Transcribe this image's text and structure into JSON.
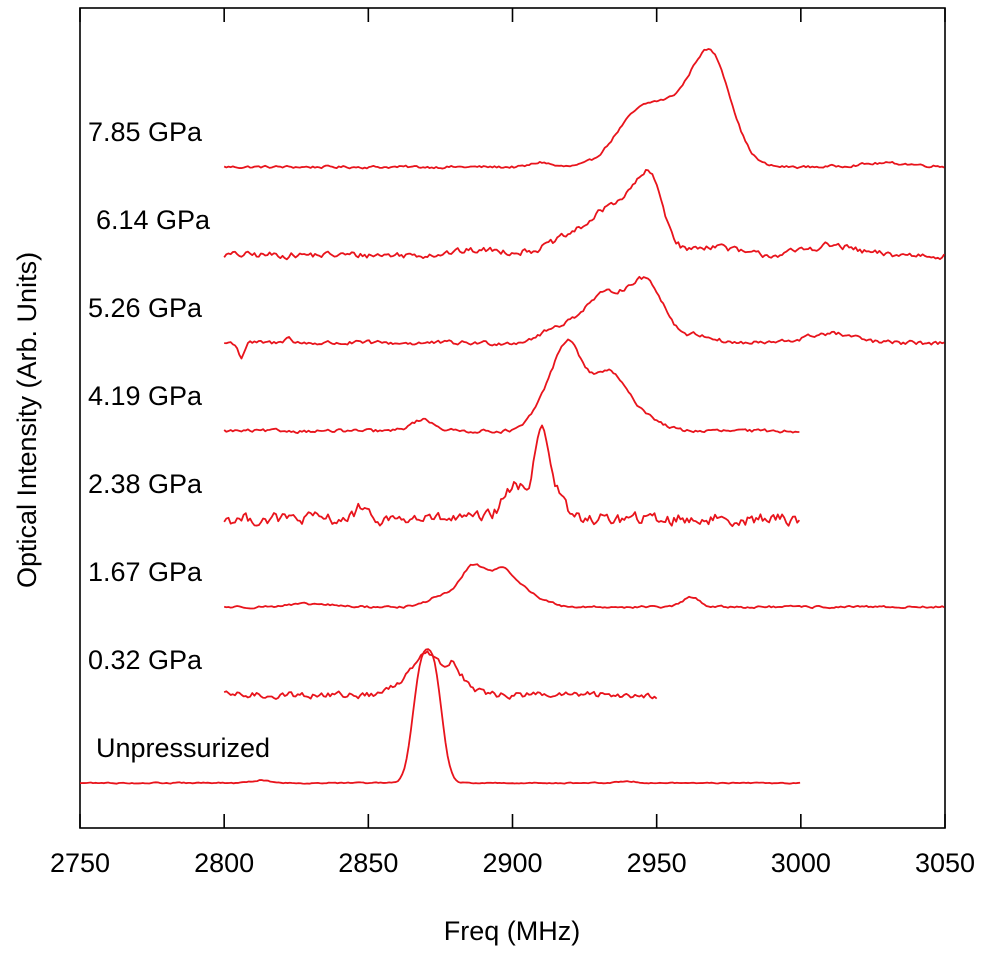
{
  "chart_data": {
    "type": "line",
    "title": "",
    "xlabel": "Freq (MHz)",
    "ylabel": "Optical Intensity (Arb. Units)",
    "xlim": [
      2750,
      3050
    ],
    "x_ticks": [
      2750,
      2800,
      2850,
      2900,
      2950,
      3000,
      3050
    ],
    "x_tick_labels": [
      "2750",
      "2800",
      "2850",
      "2900",
      "2950",
      "3000",
      "3050"
    ],
    "grid": false,
    "legend": "none; each trace labelled directly on the left",
    "line_color": "#e8141c",
    "series": [
      {
        "name": "7.85 GPa",
        "offset": 7,
        "x_range": [
          2800,
          3050
        ],
        "noise": 0.012,
        "peaks": [
          {
            "center": 2969,
            "height": 1.08,
            "width": 7
          },
          {
            "center": 2952,
            "height": 0.6,
            "width": 10
          },
          {
            "center": 2940,
            "height": 0.22,
            "width": 7
          },
          {
            "center": 2910,
            "height": 0.05,
            "width": 3
          },
          {
            "center": 3030,
            "height": 0.04,
            "width": 10
          }
        ]
      },
      {
        "name": "6.14 GPa",
        "offset": 6,
        "x_range": [
          2800,
          3050
        ],
        "noise": 0.03,
        "peaks": [
          {
            "center": 2948,
            "height": 0.55,
            "width": 4.5
          },
          {
            "center": 2938,
            "height": 0.55,
            "width": 9
          },
          {
            "center": 2920,
            "height": 0.15,
            "width": 8
          },
          {
            "center": 2970,
            "height": 0.1,
            "width": 6
          },
          {
            "center": 2890,
            "height": 0.05,
            "width": 10
          },
          {
            "center": 3010,
            "height": 0.1,
            "width": 8
          }
        ]
      },
      {
        "name": "5.26 GPa",
        "offset": 5,
        "x_range": [
          2800,
          3050
        ],
        "noise": 0.02,
        "peaks": [
          {
            "center": 2947,
            "height": 0.58,
            "width": 6
          },
          {
            "center": 2932,
            "height": 0.5,
            "width": 8
          },
          {
            "center": 2915,
            "height": 0.12,
            "width": 6
          },
          {
            "center": 2965,
            "height": 0.08,
            "width": 5
          },
          {
            "center": 3010,
            "height": 0.1,
            "width": 8
          },
          {
            "center": 2822,
            "height": 0.08,
            "width": 1
          },
          {
            "center": 2806,
            "height": -0.15,
            "width": 1
          }
        ]
      },
      {
        "name": "4.19 GPa",
        "offset": 4,
        "x_range": [
          2800,
          3000
        ],
        "noise": 0.015,
        "peaks": [
          {
            "center": 2919,
            "height": 0.9,
            "width": 5
          },
          {
            "center": 2933,
            "height": 0.6,
            "width": 6
          },
          {
            "center": 2910,
            "height": 0.2,
            "width": 4
          },
          {
            "center": 2945,
            "height": 0.15,
            "width": 6
          },
          {
            "center": 2869,
            "height": 0.12,
            "width": 4
          }
        ]
      },
      {
        "name": "2.38 GPa",
        "offset": 3,
        "x_range": [
          2800,
          3000
        ],
        "noise": 0.055,
        "peaks": [
          {
            "center": 2910,
            "height": 0.9,
            "width": 2.5
          },
          {
            "center": 2901,
            "height": 0.35,
            "width": 4
          },
          {
            "center": 2915,
            "height": 0.25,
            "width": 3
          },
          {
            "center": 2847,
            "height": 0.12,
            "width": 1.5
          }
        ]
      },
      {
        "name": "1.67 GPa",
        "offset": 2,
        "x_range": [
          2800,
          3050
        ],
        "noise": 0.01,
        "peaks": [
          {
            "center": 2886,
            "height": 0.38,
            "width": 4
          },
          {
            "center": 2896,
            "height": 0.35,
            "width": 5
          },
          {
            "center": 2876,
            "height": 0.12,
            "width": 5
          },
          {
            "center": 2905,
            "height": 0.12,
            "width": 6
          },
          {
            "center": 2962,
            "height": 0.1,
            "width": 3
          },
          {
            "center": 2830,
            "height": 0.03,
            "width": 8
          }
        ]
      },
      {
        "name": "0.32 GPa",
        "offset": 1,
        "x_range": [
          2800,
          2950
        ],
        "noise": 0.03,
        "peaks": [
          {
            "center": 2870,
            "height": 0.45,
            "width": 4
          },
          {
            "center": 2879,
            "height": 0.3,
            "width": 3
          },
          {
            "center": 2862,
            "height": 0.12,
            "width": 4
          },
          {
            "center": 2885,
            "height": 0.08,
            "width": 3
          }
        ]
      },
      {
        "name": "Unpressurized",
        "offset": 0,
        "x_range": [
          2750,
          3000
        ],
        "noise": 0.005,
        "peaks": [
          {
            "center": 2868,
            "height": 1.05,
            "width": 2.8
          },
          {
            "center": 2873,
            "height": 1.05,
            "width": 2.8
          },
          {
            "center": 2813,
            "height": 0.03,
            "width": 3
          },
          {
            "center": 2940,
            "height": 0.02,
            "width": 3
          }
        ]
      }
    ]
  }
}
